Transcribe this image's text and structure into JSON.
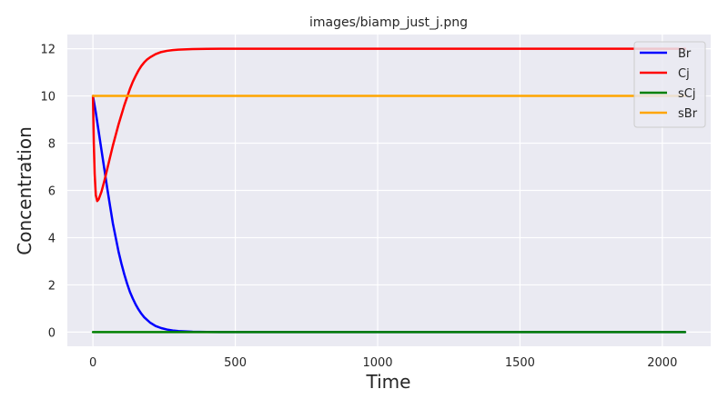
{
  "chart_data": {
    "type": "line",
    "title": "images/biamp_just_j.png",
    "xlabel": "Time",
    "ylabel": "Concentration",
    "xlim": [
      -90,
      2170
    ],
    "ylim": [
      -0.6,
      12.6
    ],
    "xticks": [
      0,
      500,
      1000,
      1500,
      2000
    ],
    "yticks": [
      0,
      2,
      4,
      6,
      8,
      10,
      12
    ],
    "grid": true,
    "legend_position": "top-right",
    "background": "#eaeaf2",
    "series": [
      {
        "name": "Br",
        "color": "#0000ff",
        "x": [
          0,
          10,
          20,
          30,
          40,
          50,
          60,
          70,
          80,
          90,
          100,
          110,
          120,
          130,
          140,
          150,
          160,
          170,
          180,
          200,
          220,
          240,
          260,
          280,
          300,
          350,
          400,
          450,
          500,
          600,
          800,
          1000,
          1500,
          2080
        ],
        "y": [
          10,
          9.3,
          8.5,
          7.7,
          6.9,
          6.1,
          5.35,
          4.6,
          4.0,
          3.4,
          2.9,
          2.45,
          2.05,
          1.7,
          1.42,
          1.17,
          0.96,
          0.78,
          0.63,
          0.41,
          0.26,
          0.17,
          0.11,
          0.07,
          0.045,
          0.015,
          0.005,
          0.002,
          0.001,
          0,
          0,
          0,
          0,
          0
        ]
      },
      {
        "name": "Cj",
        "color": "#ff0000",
        "x": [
          0,
          3,
          6,
          10,
          15,
          20,
          30,
          40,
          50,
          60,
          70,
          80,
          90,
          100,
          110,
          120,
          130,
          140,
          150,
          160,
          170,
          180,
          190,
          200,
          220,
          240,
          260,
          280,
          300,
          350,
          400,
          450,
          500,
          600,
          800,
          1000,
          1500,
          2080
        ],
        "y": [
          10,
          8.0,
          6.7,
          5.8,
          5.55,
          5.62,
          5.95,
          6.4,
          6.9,
          7.4,
          7.9,
          8.35,
          8.8,
          9.2,
          9.6,
          9.95,
          10.3,
          10.6,
          10.85,
          11.08,
          11.27,
          11.42,
          11.54,
          11.63,
          11.77,
          11.86,
          11.91,
          11.94,
          11.96,
          11.985,
          11.995,
          12,
          12,
          12,
          12,
          12,
          12,
          12
        ]
      },
      {
        "name": "sCj",
        "color": "#008000",
        "x": [
          0,
          2080
        ],
        "y": [
          0,
          0
        ]
      },
      {
        "name": "sBr",
        "color": "#ffa500",
        "x": [
          0,
          2080
        ],
        "y": [
          10,
          10
        ]
      }
    ]
  }
}
